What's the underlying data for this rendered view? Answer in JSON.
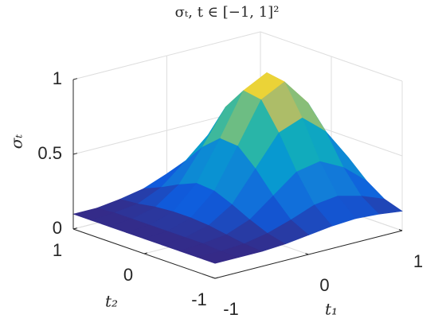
{
  "chart_data": {
    "type": "surface",
    "title": "σₜ,    t ∈ [−1, 1]²",
    "xlabel": "t₁",
    "ylabel": "t₂",
    "zlabel": "σₜ",
    "colormap": "parula",
    "grid": true,
    "x": [
      -1,
      -0.75,
      -0.5,
      -0.25,
      0,
      0.25,
      0.5,
      0.75,
      1
    ],
    "y": [
      -1,
      -0.75,
      -0.5,
      -0.25,
      0,
      0.25,
      0.5,
      0.75,
      1
    ],
    "z": [
      [
        0.1,
        0.1,
        0.1,
        0.11,
        0.13,
        0.15,
        0.16,
        0.15,
        0.13
      ],
      [
        0.1,
        0.1,
        0.11,
        0.14,
        0.19,
        0.25,
        0.27,
        0.23,
        0.17
      ],
      [
        0.1,
        0.11,
        0.13,
        0.19,
        0.31,
        0.43,
        0.46,
        0.38,
        0.25
      ],
      [
        0.1,
        0.11,
        0.15,
        0.25,
        0.45,
        0.65,
        0.71,
        0.58,
        0.36
      ],
      [
        0.1,
        0.11,
        0.16,
        0.3,
        0.56,
        0.83,
        0.91,
        0.73,
        0.44
      ],
      [
        0.1,
        0.11,
        0.16,
        0.31,
        0.57,
        0.85,
        0.93,
        0.74,
        0.45
      ],
      [
        0.1,
        0.11,
        0.15,
        0.26,
        0.47,
        0.7,
        0.76,
        0.61,
        0.38
      ],
      [
        0.1,
        0.11,
        0.13,
        0.2,
        0.33,
        0.47,
        0.51,
        0.42,
        0.28
      ],
      [
        0.1,
        0.1,
        0.12,
        0.15,
        0.21,
        0.28,
        0.3,
        0.26,
        0.19
      ]
    ],
    "xlim": [
      -1,
      1
    ],
    "ylim": [
      -1,
      1
    ],
    "zlim": [
      0,
      1
    ],
    "xticks": [
      -1,
      0,
      1
    ],
    "yticks": [
      -1,
      0,
      1
    ],
    "zticks": [
      0,
      0.5,
      1
    ]
  }
}
